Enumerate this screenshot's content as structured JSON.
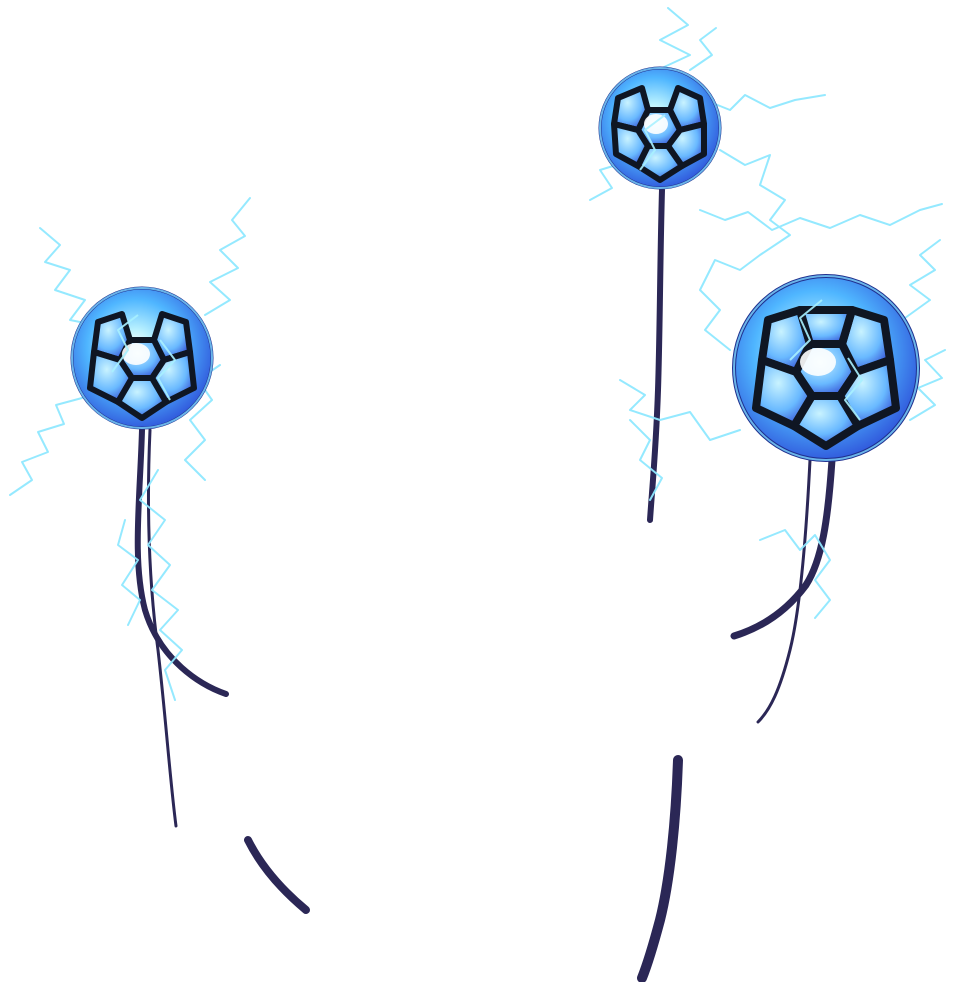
{
  "scene": {
    "background": "#ffffff",
    "orbs": [
      {
        "name": "left",
        "icon": "energy-orb-icon"
      },
      {
        "name": "top-right",
        "icon": "energy-orb-icon"
      },
      {
        "name": "right",
        "icon": "energy-orb-icon"
      }
    ],
    "colors": {
      "stroke_dark": "#2b2756",
      "cage": "#0f1623",
      "orb_glow": "#7dd6ff",
      "orb_inner": "#dff6ff",
      "panel_fill": "#3b6cff",
      "lightning": "#8fe8ff"
    }
  }
}
